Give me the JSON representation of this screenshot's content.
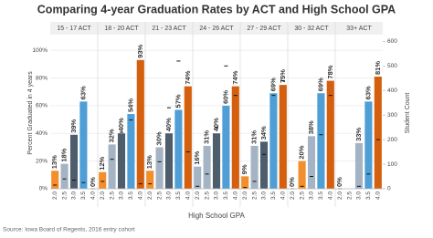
{
  "chart_data": {
    "type": "bar",
    "title": "Comparing 4-year Graduation Rates by ACT and High School GPA",
    "x_label": "High School GPA",
    "y_label": "Percent Graduated in 4 years",
    "y2_label": "Student Count",
    "source": "Source: Iowa Board of Regents, 2016 entry cohort",
    "categories": [
      "2.0",
      "2.5",
      "3.0",
      "3.5",
      "4.0"
    ],
    "ylim": [
      0,
      110
    ],
    "yticks": [
      {
        "value": 0,
        "label": "0%"
      },
      {
        "value": 20,
        "label": "20%"
      },
      {
        "value": 40,
        "label": "40%"
      },
      {
        "value": 60,
        "label": "60%"
      },
      {
        "value": 80,
        "label": "80%"
      },
      {
        "value": 100,
        "label": "100%"
      }
    ],
    "y2lim": [
      0,
      620
    ],
    "y2ticks": [
      0,
      100,
      200,
      300,
      400,
      500,
      600
    ],
    "grid": true,
    "count_color": "#111111",
    "panels": [
      {
        "name": "15 - 17 ACT",
        "values": [
          13,
          18,
          39,
          63,
          0
        ],
        "value_labels": [
          "13%",
          "18%",
          "39%",
          "63%",
          "0%"
        ],
        "counts": [
          15,
          40,
          35,
          25,
          0
        ],
        "colors": [
          "#f28e2b",
          "#a5b4c4",
          "#4e5d6c",
          "#4f9fd6",
          "#d4600f"
        ]
      },
      {
        "name": "18 - 20 ACT",
        "values": [
          12,
          32,
          40,
          54,
          93
        ],
        "value_labels": [
          "12%",
          "32%",
          "40%",
          "54%",
          "93%"
        ],
        "counts": [
          30,
          120,
          230,
          280,
          20
        ],
        "colors": [
          "#f28e2b",
          "#a5b4c4",
          "#4e5d6c",
          "#4f9fd6",
          "#d4600f"
        ]
      },
      {
        "name": "21 - 23 ACT",
        "values": [
          13,
          30,
          40,
          57,
          74
        ],
        "value_labels": [
          "13%",
          "30%",
          "40%",
          "57%",
          "74%"
        ],
        "counts": [
          20,
          110,
          330,
          520,
          150
        ],
        "colors": [
          "#f28e2b",
          "#a5b4c4",
          "#4e5d6c",
          "#4f9fd6",
          "#d4600f"
        ]
      },
      {
        "name": "24 - 26 ACT",
        "values": [
          16,
          31,
          40,
          60,
          74
        ],
        "value_labels": [
          "16%",
          "31%",
          "40%",
          "60%",
          "74%"
        ],
        "counts": [
          10,
          60,
          250,
          500,
          380
        ],
        "colors": [
          "#a5b4c4",
          "#a5b4c4",
          "#4e5d6c",
          "#4f9fd6",
          "#d4600f"
        ]
      },
      {
        "name": "27 - 29 ACT",
        "values": [
          9,
          31,
          34,
          69,
          75
        ],
        "value_labels": [
          "9%",
          "31%",
          "34%",
          "69%",
          "75%"
        ],
        "counts": [
          5,
          30,
          140,
          380,
          440
        ],
        "colors": [
          "#f28e2b",
          "#a5b4c4",
          "#4e5d6c",
          "#4f9fd6",
          "#d4600f"
        ]
      },
      {
        "name": "30 - 32 ACT",
        "values": [
          0,
          20,
          38,
          69,
          78
        ],
        "value_labels": [
          "0%",
          "20%",
          "38%",
          "69%",
          "78%"
        ],
        "counts": [
          0,
          10,
          50,
          220,
          380
        ],
        "colors": [
          "#f28e2b",
          "#f28e2b",
          "#a5b4c4",
          "#4f9fd6",
          "#d4600f"
        ]
      },
      {
        "name": "33+ ACT",
        "values": [
          0,
          null,
          33,
          63,
          81
        ],
        "value_labels": [
          "0%",
          null,
          "33%",
          "63%",
          "81%"
        ],
        "counts": [
          0,
          null,
          10,
          60,
          200
        ],
        "colors": [
          "#f28e2b",
          "#a5b4c4",
          "#a5b4c4",
          "#4f9fd6",
          "#d4600f"
        ]
      }
    ]
  }
}
